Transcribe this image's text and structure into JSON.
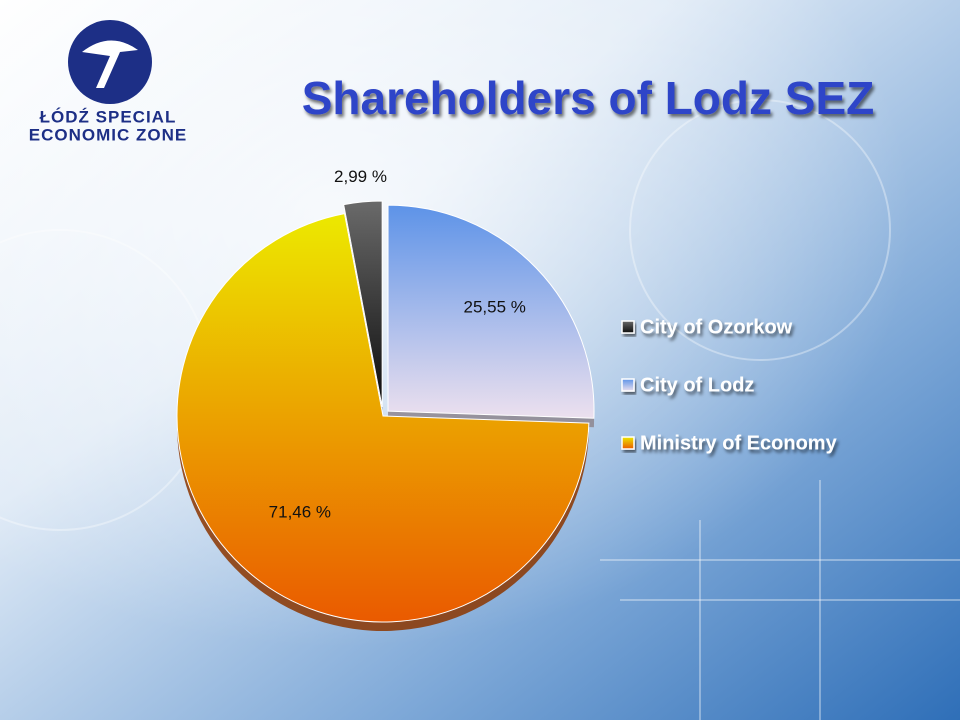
{
  "logo": {
    "line1": "ŁÓDŹ SPECIAL",
    "line2": "ECONOMIC ZONE"
  },
  "chart_data": {
    "type": "pie",
    "title": "Shareholders of Lodz SEZ",
    "categories": [
      "City of Ozorkow",
      "City of Lodz",
      "Ministry of Economy"
    ],
    "values": [
      2.99,
      25.55,
      71.46
    ],
    "value_labels": [
      "2,99 %",
      "25,55 %",
      "71,46 %"
    ],
    "colors": [
      [
        "#6a6a6a",
        "#0c0c0c"
      ],
      [
        "#5d93e8",
        "#ece0ee"
      ],
      [
        "#ece900",
        "#ea5a00"
      ]
    ],
    "legend": "right"
  }
}
